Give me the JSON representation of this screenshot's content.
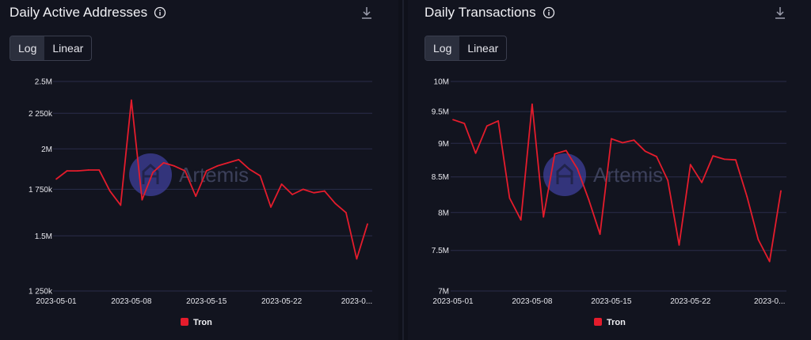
{
  "colors": {
    "series": "#e41c2c",
    "grid": "#2a2d4a",
    "watermark": "#3e3f9a"
  },
  "panels": [
    {
      "title": "Daily Active Addresses",
      "toggle": {
        "log": "Log",
        "linear": "Linear",
        "selected": "log"
      },
      "watermark": "Artemis"
    },
    {
      "title": "Daily Transactions",
      "toggle": {
        "log": "Log",
        "linear": "Linear",
        "selected": "log"
      },
      "watermark": "Artemis"
    }
  ],
  "chart_data": [
    {
      "type": "line",
      "title": "Daily Active Addresses",
      "scale": "log",
      "ylim": [
        1250000,
        2500000
      ],
      "yticks": [
        {
          "value": 2500000,
          "label": "2.5M"
        },
        {
          "value": 2250000,
          "label": "2 250k"
        },
        {
          "value": 2000000,
          "label": "2M"
        },
        {
          "value": 1750000,
          "label": "1 750k"
        },
        {
          "value": 1500000,
          "label": "1.5M"
        },
        {
          "value": 1250000,
          "label": "1 250k"
        }
      ],
      "xlim": [
        0,
        29
      ],
      "xticks": [
        {
          "value": 0,
          "label": "2023-05-01"
        },
        {
          "value": 7,
          "label": "2023-05-08"
        },
        {
          "value": 14,
          "label": "2023-05-15"
        },
        {
          "value": 21,
          "label": "2023-05-22"
        },
        {
          "value": 28,
          "label": "2023-0..."
        }
      ],
      "legend": "Tron",
      "series": [
        {
          "name": "Tron",
          "x": [
            0,
            1,
            2,
            3,
            4,
            5,
            6,
            7,
            8,
            9,
            10,
            11,
            12,
            13,
            14,
            15,
            16,
            17,
            18,
            19,
            20,
            21,
            22,
            23,
            24,
            25,
            26,
            27,
            28,
            29
          ],
          "values": [
            1810000,
            1860000,
            1860000,
            1865000,
            1865000,
            1740000,
            1660000,
            2350000,
            1690000,
            1850000,
            1910000,
            1890000,
            1860000,
            1710000,
            1860000,
            1890000,
            1910000,
            1930000,
            1870000,
            1830000,
            1650000,
            1780000,
            1720000,
            1750000,
            1730000,
            1740000,
            1670000,
            1620000,
            1390000,
            1560000
          ]
        }
      ]
    },
    {
      "type": "line",
      "title": "Daily Transactions",
      "scale": "log",
      "ylim": [
        7000000,
        10000000
      ],
      "yticks": [
        {
          "value": 10000000,
          "label": "10M"
        },
        {
          "value": 9500000,
          "label": "9.5M"
        },
        {
          "value": 9000000,
          "label": "9M"
        },
        {
          "value": 8500000,
          "label": "8.5M"
        },
        {
          "value": 8000000,
          "label": "8M"
        },
        {
          "value": 7500000,
          "label": "7.5M"
        },
        {
          "value": 7000000,
          "label": "7M"
        }
      ],
      "xlim": [
        0,
        29
      ],
      "xticks": [
        {
          "value": 0,
          "label": "2023-05-01"
        },
        {
          "value": 7,
          "label": "2023-05-08"
        },
        {
          "value": 14,
          "label": "2023-05-15"
        },
        {
          "value": 21,
          "label": "2023-05-22"
        },
        {
          "value": 28,
          "label": "2023-0..."
        }
      ],
      "legend": "Tron",
      "series": [
        {
          "name": "Tron",
          "x": [
            0,
            1,
            2,
            3,
            4,
            5,
            6,
            7,
            8,
            9,
            10,
            11,
            12,
            13,
            14,
            15,
            16,
            17,
            18,
            19,
            20,
            21,
            22,
            23,
            24,
            25,
            26,
            27,
            28,
            29
          ],
          "values": [
            9370000,
            9310000,
            8850000,
            9270000,
            9350000,
            8200000,
            7900000,
            9620000,
            7940000,
            8840000,
            8890000,
            8620000,
            8180000,
            7710000,
            9070000,
            9010000,
            9050000,
            8880000,
            8800000,
            8450000,
            7570000,
            8680000,
            8420000,
            8810000,
            8760000,
            8750000,
            8220000,
            7640000,
            7360000,
            8300000
          ]
        }
      ]
    }
  ]
}
